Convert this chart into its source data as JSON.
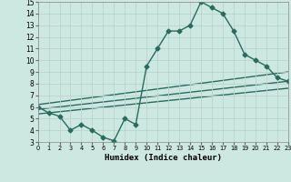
{
  "xlabel": "Humidex (Indice chaleur)",
  "bg_color": "#cce8e0",
  "grid_color": "#b8d4cc",
  "line_color": "#2a6b5e",
  "xlim": [
    0,
    23
  ],
  "ylim": [
    3,
    15
  ],
  "xticks": [
    0,
    1,
    2,
    3,
    4,
    5,
    6,
    7,
    8,
    9,
    10,
    11,
    12,
    13,
    14,
    15,
    16,
    17,
    18,
    19,
    20,
    21,
    22,
    23
  ],
  "yticks": [
    3,
    4,
    5,
    6,
    7,
    8,
    9,
    10,
    11,
    12,
    13,
    14,
    15
  ],
  "main_x": [
    0,
    1,
    2,
    3,
    4,
    5,
    6,
    7,
    8,
    9,
    10,
    11,
    12,
    13,
    14,
    15,
    16,
    17,
    18,
    19,
    20,
    21,
    22,
    23
  ],
  "main_y": [
    6.0,
    5.5,
    5.2,
    4.0,
    4.5,
    4.0,
    3.4,
    3.1,
    5.0,
    4.5,
    9.5,
    11.0,
    12.5,
    12.5,
    13.0,
    15.0,
    14.5,
    14.0,
    12.5,
    10.5,
    10.0,
    9.5,
    8.5,
    8.2
  ],
  "line2_x": [
    0,
    23
  ],
  "line2_y": [
    5.8,
    8.2
  ],
  "line3_x": [
    0,
    23
  ],
  "line3_y": [
    6.2,
    9.0
  ],
  "line4_x": [
    0,
    23
  ],
  "line4_y": [
    5.4,
    7.6
  ],
  "marker": "D",
  "markersize": 2.5,
  "linewidth": 1.0,
  "tick_fontsize": 5.5,
  "xlabel_fontsize": 6.5
}
